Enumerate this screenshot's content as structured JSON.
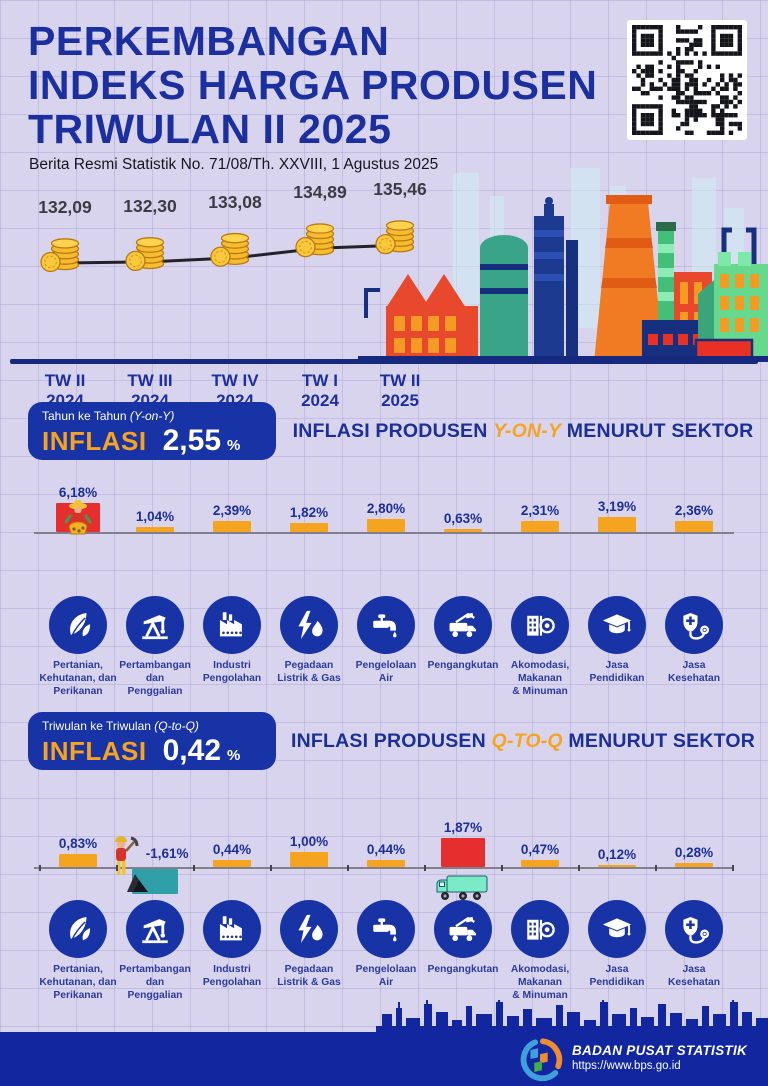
{
  "header": {
    "title_lines": [
      "PERKEMBANGAN",
      "INDEKS HARGA PRODUSEN",
      "TRIWULAN II 2025"
    ],
    "subtitle": "Berita Resmi Statistik No. 71/08/Th. XXVIII, 1 Agustus 2025"
  },
  "colors": {
    "title_blue": "#1c2f9f",
    "banner_blue": "#1733a6",
    "accent_orange": "#f6a41f",
    "bar_orange": "#f5a41f",
    "bar_red": "#e62e2e",
    "bar_teal": "#2f9fa8",
    "footer_navy": "#1226a0"
  },
  "yoy_banner": {
    "period_prefix": "Tahun ke Tahun ",
    "period_paren": "(Y-on-Y)",
    "inflasi_label": "INFLASI",
    "value": "2,55",
    "unit": "%"
  },
  "yoy_heading": {
    "pre": "INFLASI PRODUSEN ",
    "highlight": "Y-ON-Y",
    "post": " MENURUT SEKTOR"
  },
  "qtq_banner": {
    "period_prefix": "Triwulan ke Triwulan ",
    "period_paren": "(Q-to-Q)",
    "inflasi_label": "INFLASI",
    "value": "0,42",
    "unit": "%"
  },
  "qtq_heading": {
    "pre": "INFLASI PRODUSEN ",
    "highlight": "Q-TO-Q",
    "post": " MENURUT SEKTOR"
  },
  "sectors": [
    {
      "label": "Pertanian,\nKehutanan, dan\nPerikanan",
      "icon": "leaf-icon"
    },
    {
      "label": "Pertambangan\ndan\nPenggalian",
      "icon": "oil-pump-icon"
    },
    {
      "label": "Industri\nPengolahan",
      "icon": "factory-icon"
    },
    {
      "label": "Pegadaan\nListrik & Gas",
      "icon": "flash-flame-icon"
    },
    {
      "label": "Pengelolaan\nAir",
      "icon": "faucet-icon"
    },
    {
      "label": "Pengangkutan",
      "icon": "truck-icon"
    },
    {
      "label": "Akomodasi,\nMakanan\n& Minuman",
      "icon": "hotel-dining-icon"
    },
    {
      "label": "Jasa\nPendidikan",
      "icon": "graduation-cap-icon"
    },
    {
      "label": "Jasa\nKesehatan",
      "icon": "stethoscope-icon"
    }
  ],
  "chart_data": [
    {
      "type": "line",
      "name": "Indeks Harga Produsen",
      "categories": [
        "TW II\n2024",
        "TW III\n2024",
        "TW IV\n2024",
        "TW I\n2024",
        "TW II\n2025"
      ],
      "values": [
        132.09,
        132.3,
        133.08,
        134.89,
        135.46
      ],
      "value_labels": [
        "132,09",
        "132,30",
        "133,08",
        "134,89",
        "135,46"
      ],
      "ylim": [
        131.5,
        136
      ]
    },
    {
      "type": "bar",
      "title": "INFLASI PRODUSEN Y-ON-Y MENURUT SEKTOR",
      "total": 2.55,
      "total_label": "2,55 %",
      "categories": [
        "Pertanian, Kehutanan, dan Perikanan",
        "Pertambangan dan Penggalian",
        "Industri Pengolahan",
        "Pegadaan Listrik & Gas",
        "Pengelolaan Air",
        "Pengangkutan",
        "Akomodasi, Makanan & Minuman",
        "Jasa Pendidikan",
        "Jasa Kesehatan"
      ],
      "values": [
        6.18,
        1.04,
        2.39,
        1.82,
        2.8,
        0.63,
        2.31,
        3.19,
        2.36
      ],
      "value_labels": [
        "6,18%",
        "1,04%",
        "2,39%",
        "1,82%",
        "2,80%",
        "0,63%",
        "2,31%",
        "3,19%",
        "2,36%"
      ],
      "bar_colors": [
        "#e62e2e",
        "#f5a41f",
        "#f5a41f",
        "#f5a41f",
        "#f5a41f",
        "#f5a41f",
        "#f5a41f",
        "#f5a41f",
        "#f5a41f"
      ]
    },
    {
      "type": "bar",
      "title": "INFLASI PRODUSEN Q-TO-Q MENURUT SEKTOR",
      "total": 0.42,
      "total_label": "0,42%",
      "categories": [
        "Pertanian, Kehutanan, dan Perikanan",
        "Pertambangan dan Penggalian",
        "Industri Pengolahan",
        "Pegadaan Listrik & Gas",
        "Pengelolaan Air",
        "Pengangkutan",
        "Akomodasi, Makanan & Minuman",
        "Jasa Pendidikan",
        "Jasa Kesehatan"
      ],
      "values": [
        0.83,
        -1.61,
        0.44,
        1.0,
        0.44,
        1.87,
        0.47,
        0.12,
        0.28
      ],
      "value_labels": [
        "0,83%",
        "-1,61%",
        "0,44%",
        "1,00%",
        "0,44%",
        "1,87%",
        "0,47%",
        "0,12%",
        "0,28%"
      ],
      "bar_colors": [
        "#f5a41f",
        "#2f9fa8",
        "#f5a41f",
        "#f5a41f",
        "#f5a41f",
        "#e62e2e",
        "#f5a41f",
        "#f5a41f",
        "#f5a41f"
      ]
    }
  ],
  "footer": {
    "org": "BADAN PUSAT STATISTIK",
    "url": "https://www.bps.go.id"
  }
}
